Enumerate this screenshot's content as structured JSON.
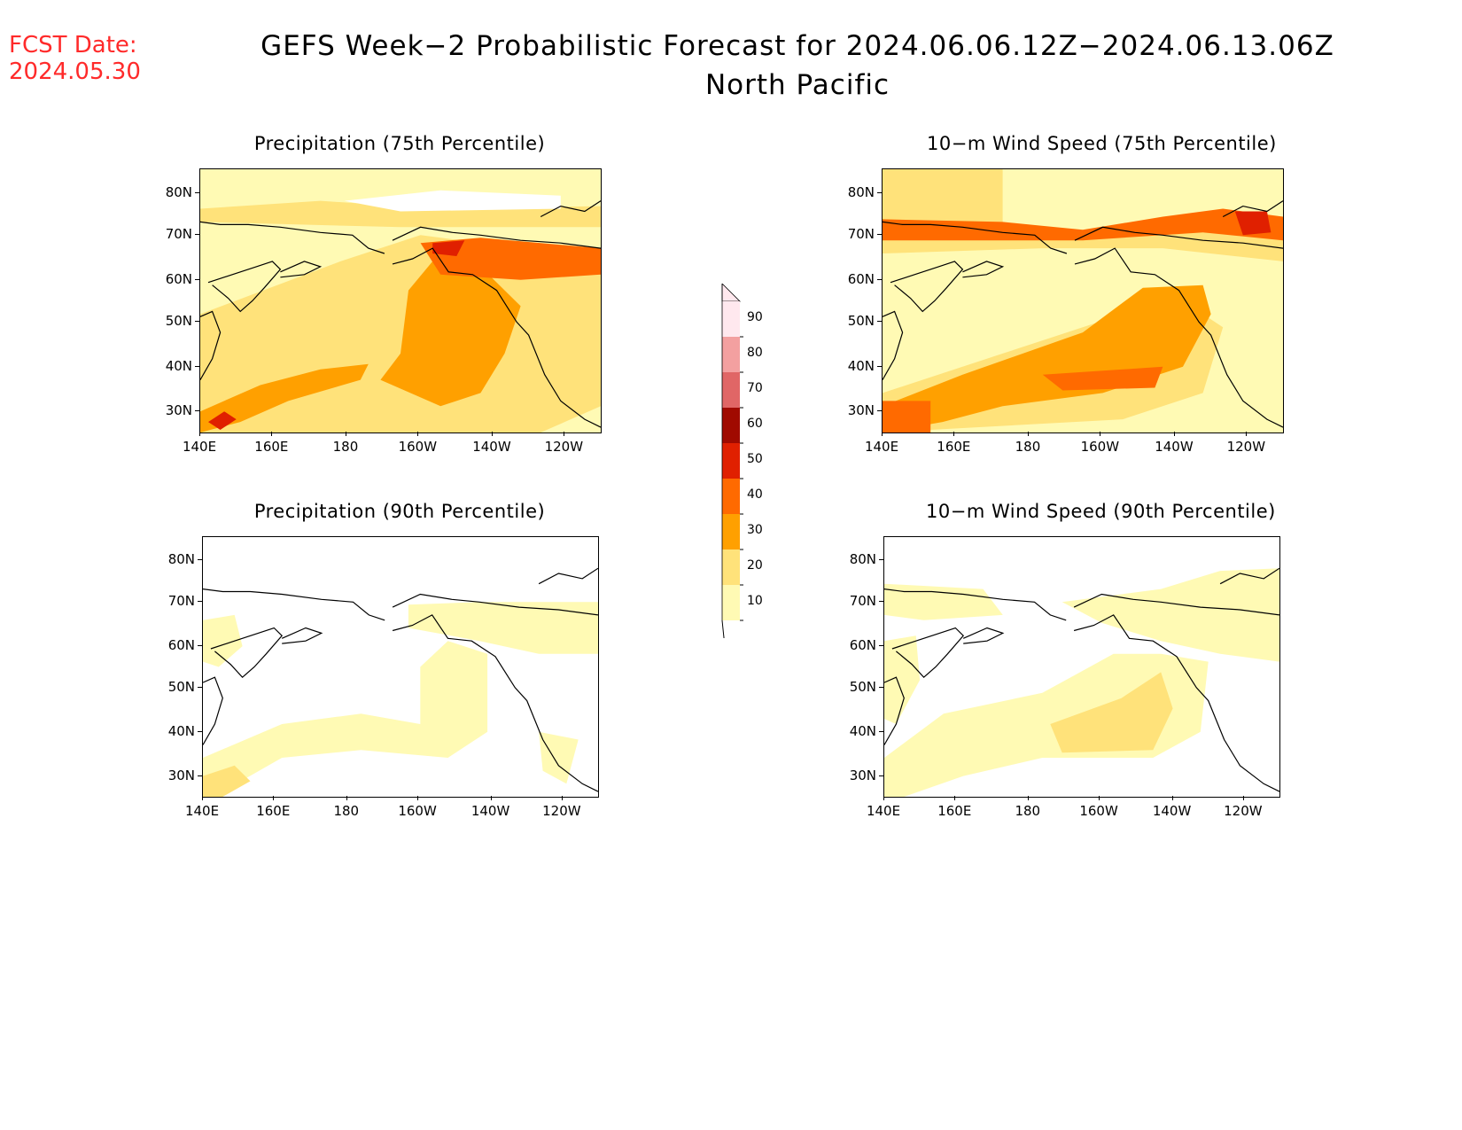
{
  "header": {
    "fcst_label": "FCST Date:",
    "fcst_date": "2024.05.30",
    "title_line1": "GEFS Week−2 Probabilistic Forecast for 2024.06.06.12Z−2024.06.13.06Z",
    "title_line2": "North Pacific"
  },
  "panels": [
    {
      "title": "Precipitation (75th Percentile)",
      "variant": "precip75"
    },
    {
      "title": "10−m Wind Speed (75th Percentile)",
      "variant": "wind75"
    },
    {
      "title": "Precipitation (90th Percentile)",
      "variant": "precip90"
    },
    {
      "title": "10−m Wind Speed (90th Percentile)",
      "variant": "wind90"
    }
  ],
  "axes": {
    "lat_labels": [
      "80N",
      "70N",
      "60N",
      "50N",
      "40N",
      "30N"
    ],
    "lon_labels": [
      "140E",
      "160E",
      "180",
      "160W",
      "140W",
      "120W"
    ]
  },
  "legend": {
    "labels": [
      "90",
      "80",
      "70",
      "60",
      "50",
      "40",
      "30",
      "20",
      "10"
    ],
    "colors": [
      "#ffe8ee",
      "#f3a0a0",
      "#e06666",
      "#a00a00",
      "#e02000",
      "#ff6a00",
      "#ffa000",
      "#ffe27a",
      "#fffab4"
    ]
  }
}
